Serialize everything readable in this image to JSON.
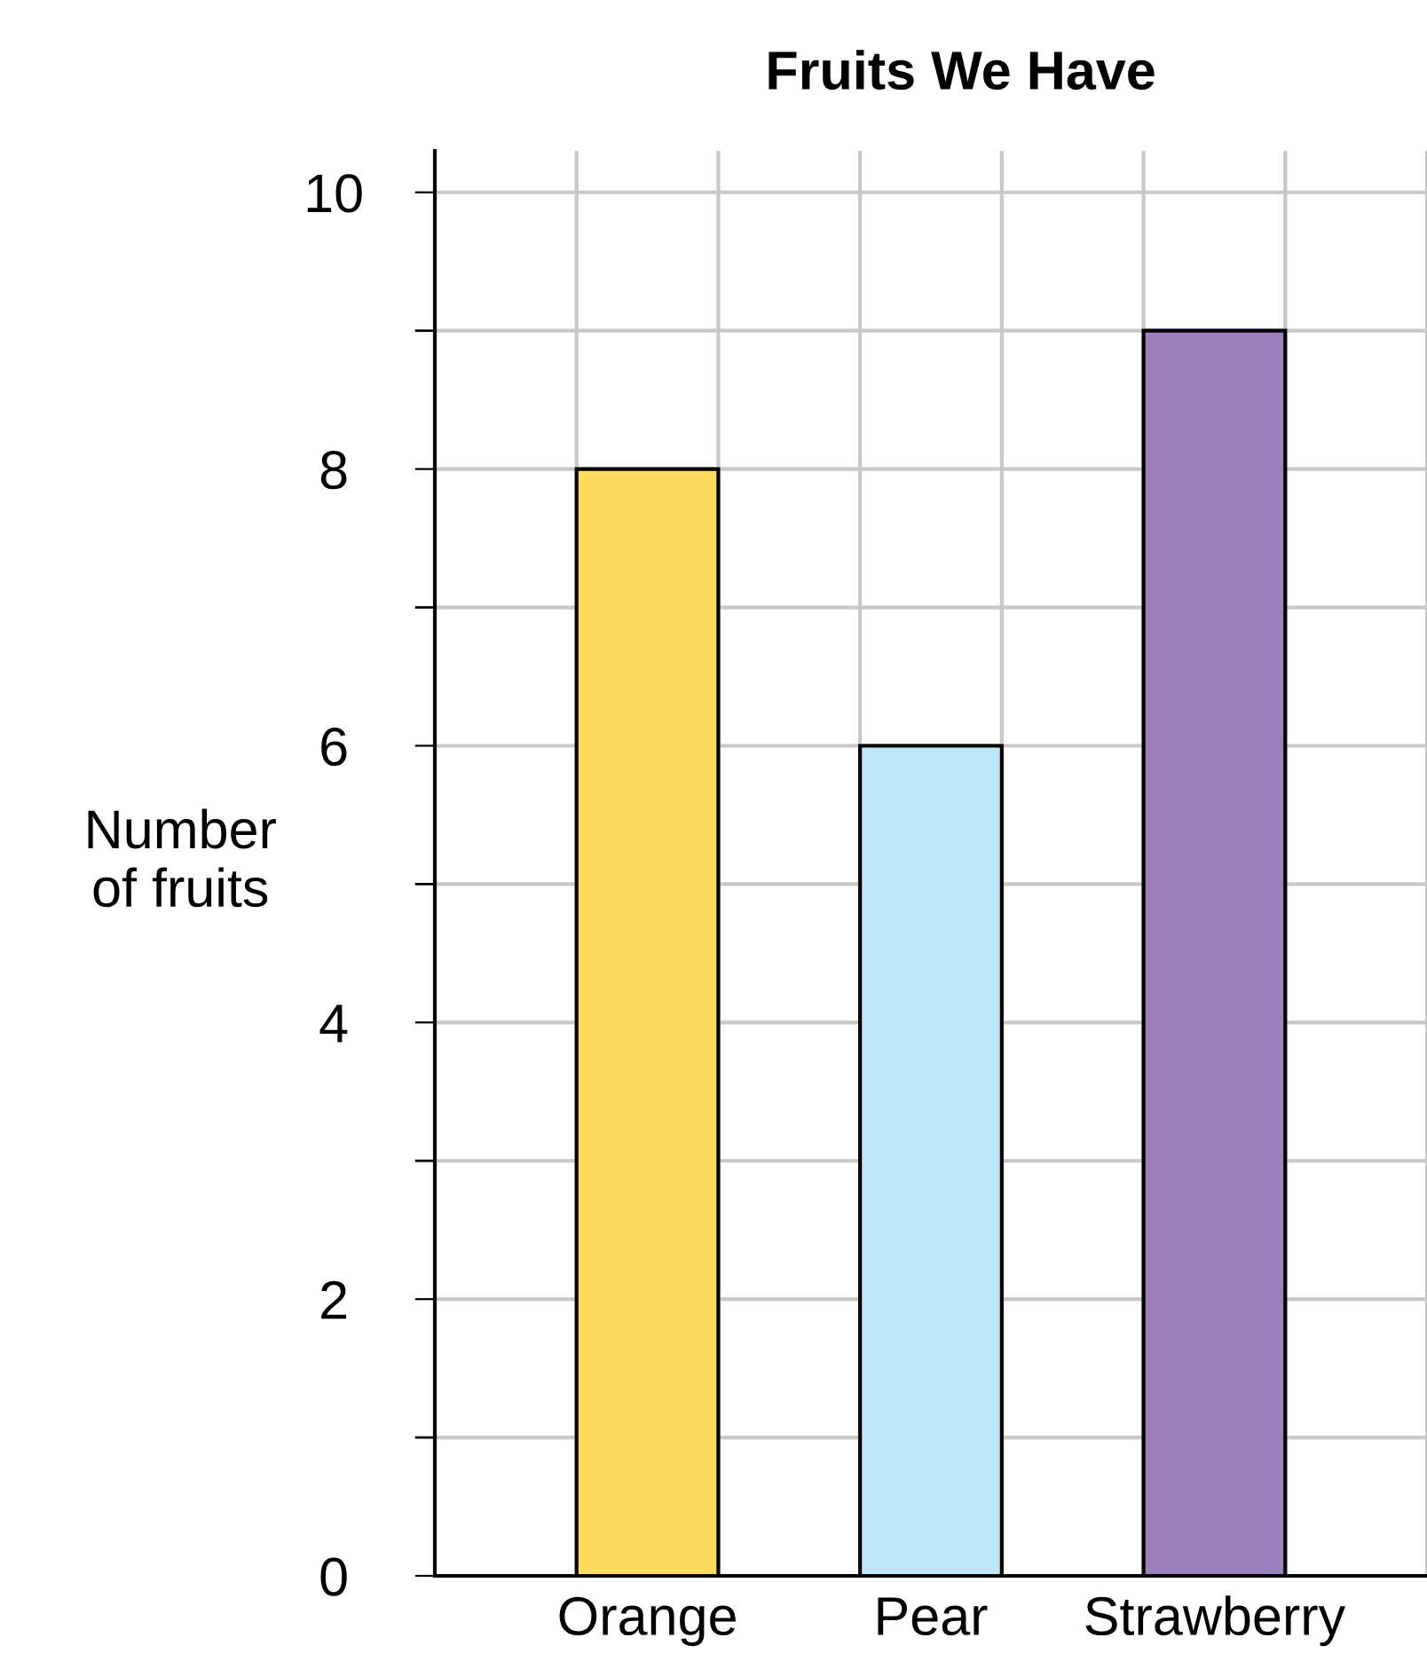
{
  "chart_data": {
    "type": "bar",
    "title": "Fruits We Have",
    "ylabel": "Number\nof fruits",
    "categories": [
      "Orange",
      "Pear",
      "Strawberry"
    ],
    "values": [
      8,
      6,
      9
    ],
    "colors": [
      "#fddb5f",
      "#bde6f7",
      "#9b80bb"
    ],
    "ylim": [
      0,
      10.3
    ],
    "yticks": [
      0,
      {
        "value": 1,
        "label": null
      },
      2,
      {
        "value": 3,
        "label": null
      },
      4,
      {
        "value": 5,
        "label": null
      },
      6,
      {
        "value": 7,
        "label": null
      },
      8,
      {
        "value": 9,
        "label": null
      },
      10
    ],
    "grid": true
  }
}
